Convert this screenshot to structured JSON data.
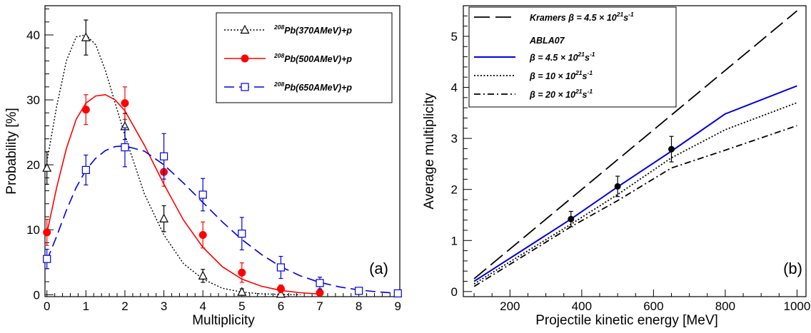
{
  "colors": {
    "black": "#000000",
    "red": "#ff0000",
    "blue": "#0000e0",
    "axis": "#000000"
  },
  "chart_data": [
    {
      "type": "line",
      "panel_label": "(a)",
      "xlabel": "Multiplicity",
      "ylabel": "Probability [%]",
      "xlim": [
        -0.05,
        9.05
      ],
      "ylim": [
        -0.3,
        44.5
      ],
      "xticks": [
        "0",
        "1",
        "2",
        "3",
        "4",
        "5",
        "6",
        "7",
        "8",
        "9"
      ],
      "yticks": [
        "0",
        "10",
        "20",
        "30",
        "40"
      ],
      "legend_position": "top-right",
      "series": [
        {
          "name": "(370AMeV)+p",
          "name_prefix": "Pb",
          "name_sup": "208",
          "color": "#000000",
          "marker": "open-triangle",
          "line": "dotted",
          "points": [
            [
              0,
              19.5
            ],
            [
              1,
              39.6
            ],
            [
              2,
              25.9
            ],
            [
              3,
              11.7
            ],
            [
              4,
              2.9
            ],
            [
              5,
              0.4
            ],
            [
              6,
              0.1
            ]
          ],
          "errors": [
            2.5,
            2.7,
            2.0,
            2.0,
            1.0,
            0.5,
            0.3
          ],
          "curve": [
            [
              0,
              20.5
            ],
            [
              0.25,
              29
            ],
            [
              0.5,
              36
            ],
            [
              0.75,
              39.7
            ],
            [
              1,
              40
            ],
            [
              1.25,
              38.5
            ],
            [
              1.5,
              34.5
            ],
            [
              1.75,
              29.5
            ],
            [
              2,
              24.5
            ],
            [
              2.5,
              15.5
            ],
            [
              3,
              9.2
            ],
            [
              3.5,
              4.8
            ],
            [
              4,
              2.4
            ],
            [
              4.5,
              1.0
            ],
            [
              5,
              0.4
            ],
            [
              5.5,
              0.13
            ],
            [
              6,
              0.04
            ],
            [
              6.5,
              0.0
            ]
          ]
        },
        {
          "name": "(500AMeV)+p",
          "name_prefix": "Pb",
          "name_sup": "208",
          "color": "#ff0000",
          "marker": "filled-circle",
          "line": "solid",
          "points": [
            [
              0,
              9.6
            ],
            [
              1,
              28.5
            ],
            [
              2,
              29.5
            ],
            [
              3,
              18.9
            ],
            [
              4,
              9.2
            ],
            [
              5,
              3.4
            ],
            [
              6,
              0.9
            ],
            [
              7,
              0.3
            ]
          ],
          "errors": [
            2.0,
            2.3,
            2.5,
            2.2,
            2.0,
            1.5,
            0.6,
            0.3
          ],
          "curve": [
            [
              0,
              9.5
            ],
            [
              0.25,
              16.5
            ],
            [
              0.5,
              22.5
            ],
            [
              0.75,
              27
            ],
            [
              1,
              29.5
            ],
            [
              1.25,
              30.6
            ],
            [
              1.5,
              30.8
            ],
            [
              1.75,
              30
            ],
            [
              2,
              28.3
            ],
            [
              2.5,
              23
            ],
            [
              3,
              17
            ],
            [
              3.5,
              11.5
            ],
            [
              4,
              7.3
            ],
            [
              4.5,
              4.3
            ],
            [
              5,
              2.4
            ],
            [
              5.5,
              1.3
            ],
            [
              6,
              0.65
            ],
            [
              6.5,
              0.3
            ],
            [
              7,
              0.1
            ]
          ]
        },
        {
          "name": "(650AMeV)+p",
          "name_prefix": "Pb",
          "name_sup": "208",
          "color": "#0000e0",
          "marker": "open-square",
          "line": "dashed",
          "points": [
            [
              0,
              5.5
            ],
            [
              1,
              19.2
            ],
            [
              2,
              22.7
            ],
            [
              3,
              21.3
            ],
            [
              4,
              15.4
            ],
            [
              5,
              9.4
            ],
            [
              6,
              4.2
            ],
            [
              7,
              1.8
            ],
            [
              8,
              0.6
            ],
            [
              9,
              0.2
            ]
          ],
          "errors": [
            1.5,
            2.3,
            3.0,
            3.5,
            2.5,
            2.5,
            1.7,
            0.9,
            0.3,
            0.2
          ],
          "curve": [
            [
              0,
              5.3
            ],
            [
              0.25,
              9
            ],
            [
              0.5,
              13
            ],
            [
              0.75,
              16.5
            ],
            [
              1,
              19.2
            ],
            [
              1.25,
              21
            ],
            [
              1.5,
              22.2
            ],
            [
              1.75,
              22.8
            ],
            [
              2,
              22.9
            ],
            [
              2.5,
              22.1
            ],
            [
              3,
              20
            ],
            [
              3.5,
              17.2
            ],
            [
              4,
              14.2
            ],
            [
              4.5,
              11.2
            ],
            [
              5,
              8.5
            ],
            [
              5.5,
              6.2
            ],
            [
              6,
              4.3
            ],
            [
              6.5,
              2.9
            ],
            [
              7,
              1.9
            ],
            [
              7.5,
              1.2
            ],
            [
              8,
              0.72
            ],
            [
              8.5,
              0.42
            ],
            [
              9,
              0.22
            ]
          ]
        }
      ]
    },
    {
      "type": "line",
      "panel_label": "(b)",
      "xlabel": "Projectile kinetic energy [MeV]",
      "ylabel": "Average multiplicity",
      "xlim": [
        70,
        1025
      ],
      "ylim": [
        -0.1,
        5.6
      ],
      "xticks": [
        "200",
        "400",
        "600",
        "800",
        "1000"
      ],
      "yticks": [
        "0",
        "1",
        "2",
        "3",
        "4",
        "5"
      ],
      "legend_position": "top-left",
      "legend_header": "ABLA07",
      "series": [
        {
          "name_main": "Kramers",
          "name_beta": "β = 4.5 × 10",
          "name_sup": "21",
          "name_unit": "s",
          "name_unit_sup": "-1",
          "color": "#000000",
          "line": "long-dash",
          "points": [
            [
              100,
              0.25
            ],
            [
              1000,
              5.5
            ]
          ]
        },
        {
          "name_beta": "β = 4.5 × 10",
          "name_sup": "21",
          "name_unit": "s",
          "name_unit_sup": "-1",
          "color": "#0000e0",
          "line": "solid",
          "points": [
            [
              100,
              0.2
            ],
            [
              370,
              1.42
            ],
            [
              500,
              2.05
            ],
            [
              650,
              2.75
            ],
            [
              800,
              3.48
            ],
            [
              1000,
              4.03
            ]
          ]
        },
        {
          "name_beta": "β = 10 × 10",
          "name_sup": "21",
          "name_unit": "s",
          "name_unit_sup": "-1",
          "color": "#000000",
          "line": "dotted",
          "points": [
            [
              100,
              0.15
            ],
            [
              370,
              1.32
            ],
            [
              500,
              1.9
            ],
            [
              650,
              2.62
            ],
            [
              800,
              3.17
            ],
            [
              1000,
              3.7
            ]
          ]
        },
        {
          "name_beta": "β = 20 × 10",
          "name_sup": "21",
          "name_unit": "s",
          "name_unit_sup": "-1",
          "color": "#000000",
          "line": "dash-dot",
          "points": [
            [
              100,
              0.1
            ],
            [
              370,
              1.27
            ],
            [
              500,
              1.78
            ],
            [
              650,
              2.42
            ],
            [
              800,
              2.77
            ],
            [
              1000,
              3.25
            ]
          ]
        }
      ],
      "experiment": {
        "color": "#000000",
        "marker": "filled-circle",
        "points": [
          [
            370,
            1.42
          ],
          [
            500,
            2.06
          ],
          [
            650,
            2.79
          ]
        ],
        "errors": [
          0.15,
          0.2,
          0.25
        ]
      }
    }
  ]
}
